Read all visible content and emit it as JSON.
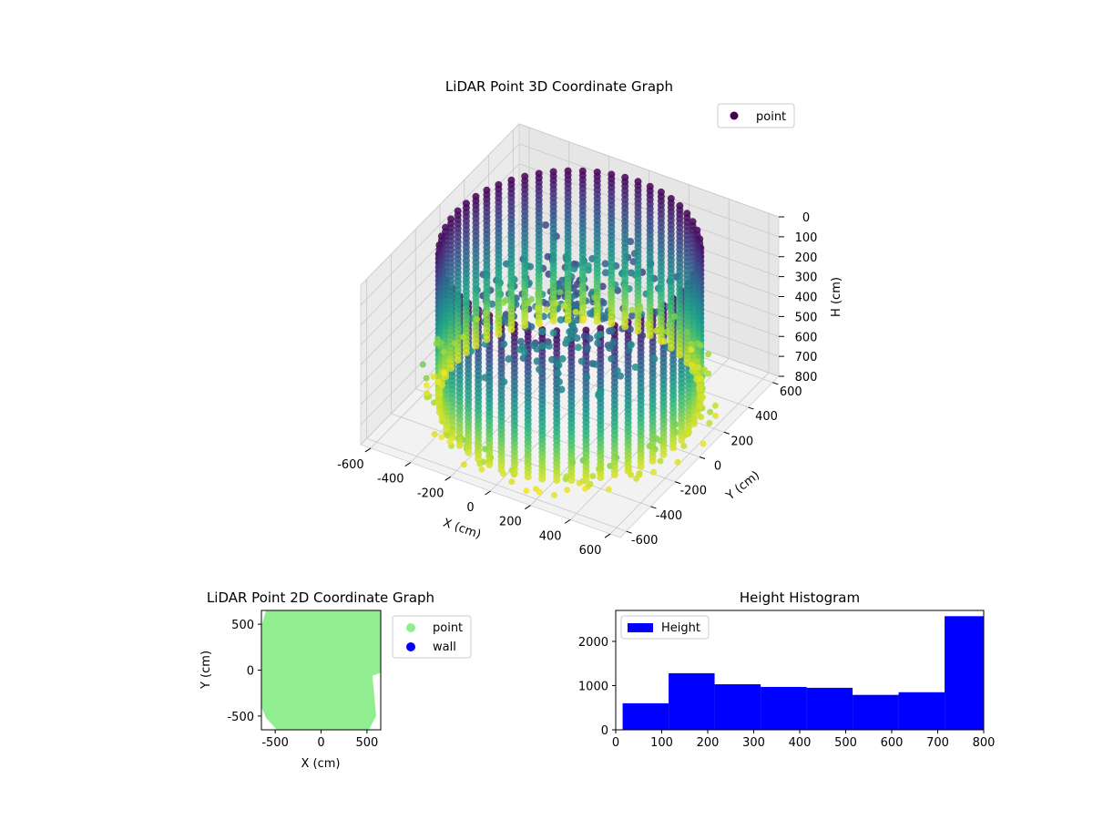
{
  "chart_data": [
    {
      "id": "lidar-3d",
      "type": "scatter",
      "projection": "3d",
      "title": "LiDAR Point 3D Coordinate Graph",
      "xlabel": "X (cm)",
      "ylabel": "Y (cm)",
      "zlabel": "H (cm)",
      "xlim": [
        -650,
        650
      ],
      "ylim": [
        -650,
        650
      ],
      "zlim": [
        0,
        800
      ],
      "z_inverted": true,
      "xticks": [
        -600,
        -400,
        -200,
        0,
        200,
        400,
        600
      ],
      "yticks": [
        -600,
        -400,
        -200,
        0,
        200,
        400,
        600
      ],
      "zticks": [
        0,
        100,
        200,
        300,
        400,
        500,
        600,
        700,
        800
      ],
      "colormap": "viridis",
      "grid": true,
      "legend": {
        "position": "top-right",
        "entries": [
          {
            "label": "point",
            "color": "#440154"
          }
        ]
      },
      "series": [
        {
          "name": "point",
          "shape": "cylindrical wall with interior structures",
          "wall_radius": 560,
          "height_range": [
            0,
            800
          ]
        }
      ]
    },
    {
      "id": "lidar-2d",
      "type": "scatter",
      "title": "LiDAR Point 2D Coordinate Graph",
      "xlabel": "X (cm)",
      "ylabel": "Y (cm)",
      "xlim": [
        -650,
        650
      ],
      "ylim": [
        -650,
        650
      ],
      "xticks": [
        -500,
        0,
        500
      ],
      "yticks": [
        -500,
        0,
        500
      ],
      "legend": {
        "position": "outside-right",
        "entries": [
          {
            "label": "point",
            "color": "#90ee90"
          },
          {
            "label": "wall",
            "color": "#0000ff"
          }
        ]
      },
      "series": [
        {
          "name": "point",
          "color": "#90ee90",
          "extent_x": [
            -650,
            650
          ],
          "extent_y": [
            -650,
            650
          ]
        },
        {
          "name": "wall",
          "color": "#0000ff",
          "values": []
        }
      ]
    },
    {
      "id": "height-hist",
      "type": "bar",
      "title": "Height Histogram",
      "xlabel": "",
      "ylabel": "",
      "xlim": [
        0,
        800
      ],
      "ylim": [
        0,
        2700
      ],
      "xticks": [
        0,
        100,
        200,
        300,
        400,
        500,
        600,
        700,
        800
      ],
      "yticks": [
        0,
        1000,
        2000
      ],
      "legend": {
        "position": "top-left",
        "entries": [
          {
            "label": "Height",
            "color": "#0000ff"
          }
        ]
      },
      "bin_edges": [
        15,
        115,
        215,
        315,
        415,
        515,
        615,
        715,
        800
      ],
      "values": [
        600,
        1280,
        1030,
        970,
        950,
        790,
        850,
        2570
      ],
      "color": "#0000ff"
    }
  ]
}
